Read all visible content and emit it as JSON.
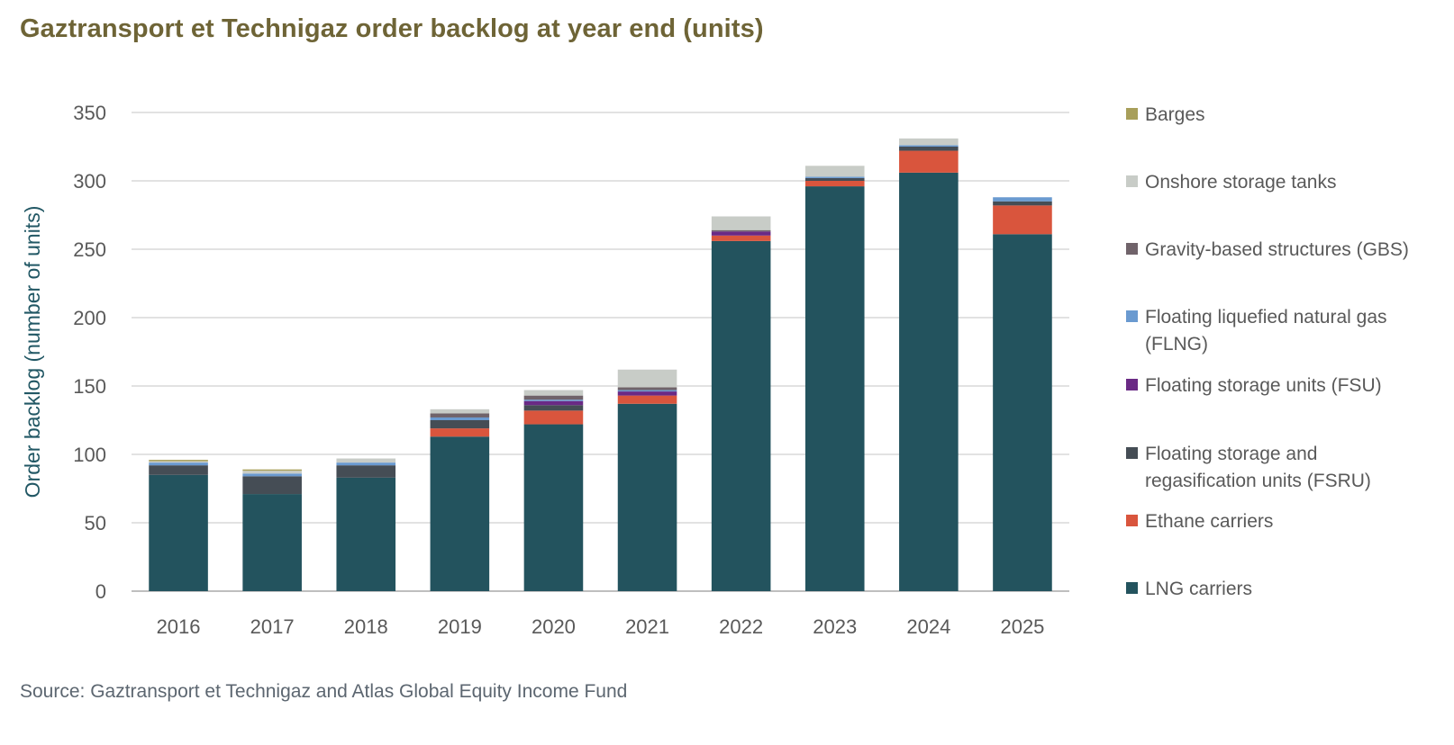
{
  "title": "Gaztransport et Technigaz order backlog at year end (units)",
  "source": "Source: Gaztransport et Technigaz and Atlas Global Equity Income Fund",
  "chart_data": {
    "type": "bar",
    "stacked": true,
    "title": "Gaztransport et Technigaz order backlog at year end (units)",
    "xlabel": "",
    "ylabel": "Order backlog (number of units)",
    "ylim": [
      0,
      350
    ],
    "yticks": [
      0,
      50,
      100,
      150,
      200,
      250,
      300,
      350
    ],
    "grid": true,
    "legend_position": "right",
    "categories": [
      "2016",
      "2017",
      "2018",
      "2019",
      "2020",
      "2021",
      "2022",
      "2023",
      "2024",
      "2025"
    ],
    "series": [
      {
        "name": "LNG carriers",
        "color": "#23535e",
        "values": [
          85,
          71,
          83,
          113,
          122,
          137,
          256,
          296,
          306,
          261
        ]
      },
      {
        "name": "Ethane carriers",
        "color": "#d9553d",
        "values": [
          0,
          0,
          0,
          6,
          10,
          6,
          4,
          4,
          16,
          21
        ]
      },
      {
        "name": "Floating storage and regasification units (FSRU)",
        "color": "#454d55",
        "values": [
          7,
          13,
          9,
          6,
          4,
          0,
          0,
          2,
          3,
          3
        ]
      },
      {
        "name": "Floating storage units (FSU)",
        "color": "#6a2a85",
        "values": [
          0,
          0,
          0,
          0,
          3,
          3,
          3,
          0,
          0,
          0
        ]
      },
      {
        "name": "Floating liquefied natural gas (FLNG)",
        "color": "#6a9ad0",
        "values": [
          2,
          2,
          2,
          2,
          1,
          1,
          0,
          1,
          1,
          3
        ]
      },
      {
        "name": "Gravity-based structures (GBS)",
        "color": "#70636a",
        "values": [
          0,
          0,
          0,
          3,
          3,
          2,
          1,
          0,
          0,
          0
        ]
      },
      {
        "name": "Onshore storage tanks",
        "color": "#c8ccc7",
        "values": [
          1,
          2,
          3,
          3,
          4,
          13,
          10,
          8,
          5,
          0
        ]
      },
      {
        "name": "Barges",
        "color": "#a89f5a",
        "values": [
          1,
          1,
          0,
          0,
          0,
          0,
          0,
          0,
          0,
          0
        ]
      }
    ],
    "legend": [
      {
        "label": "Barges",
        "color": "#a89f5a"
      },
      {
        "label": "Onshore storage tanks",
        "color": "#c8ccc7"
      },
      {
        "label": "Gravity-based structures (GBS)",
        "color": "#70636a"
      },
      {
        "label": "Floating liquefied natural gas (FLNG)",
        "color": "#6a9ad0"
      },
      {
        "label": "Floating storage units (FSU)",
        "color": "#6a2a85"
      },
      {
        "label": "Floating storage and regasification units (FSRU)",
        "color": "#454d55"
      },
      {
        "label": "Ethane carriers",
        "color": "#d9553d"
      },
      {
        "label": "LNG carriers",
        "color": "#23535e"
      }
    ]
  }
}
